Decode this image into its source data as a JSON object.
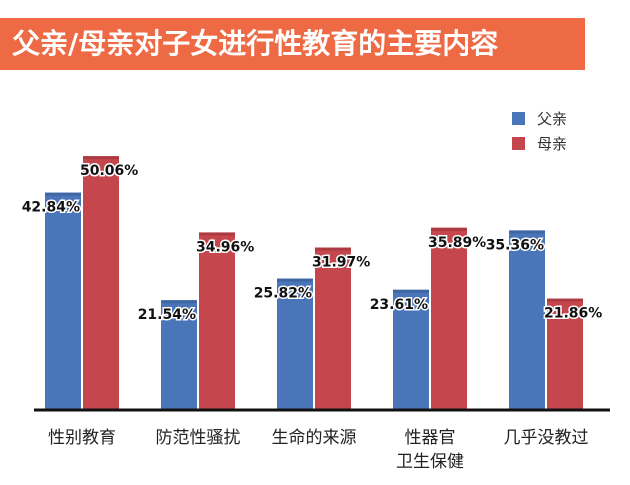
{
  "title": "父亲/母亲对子女进行性教育的主要内容",
  "colors": {
    "banner": "#ee6a45",
    "father": "#4a76b9",
    "mother": "#c5474d"
  },
  "chart_data": {
    "type": "bar",
    "title": "父亲/母亲对子女进行性教育的主要内容",
    "xlabel": "",
    "ylabel": "",
    "categories": [
      "性别教育",
      "防范性骚扰",
      "生命的来源",
      "性器官\n卫生保健",
      "几乎没教过"
    ],
    "series": [
      {
        "name": "父亲",
        "values": [
          42.84,
          21.54,
          25.82,
          23.61,
          35.36
        ],
        "labels": [
          "42.84%",
          "21.54%",
          "25.82%",
          "23.61%",
          "35.36%"
        ]
      },
      {
        "name": "母亲",
        "values": [
          50.06,
          34.96,
          31.97,
          35.89,
          21.86
        ],
        "labels": [
          "50.06%",
          "34.96%",
          "31.97%",
          "35.89%",
          "21.86%"
        ]
      }
    ],
    "ylim": [
      0,
      60
    ],
    "grid": false,
    "legend": "top-right"
  }
}
